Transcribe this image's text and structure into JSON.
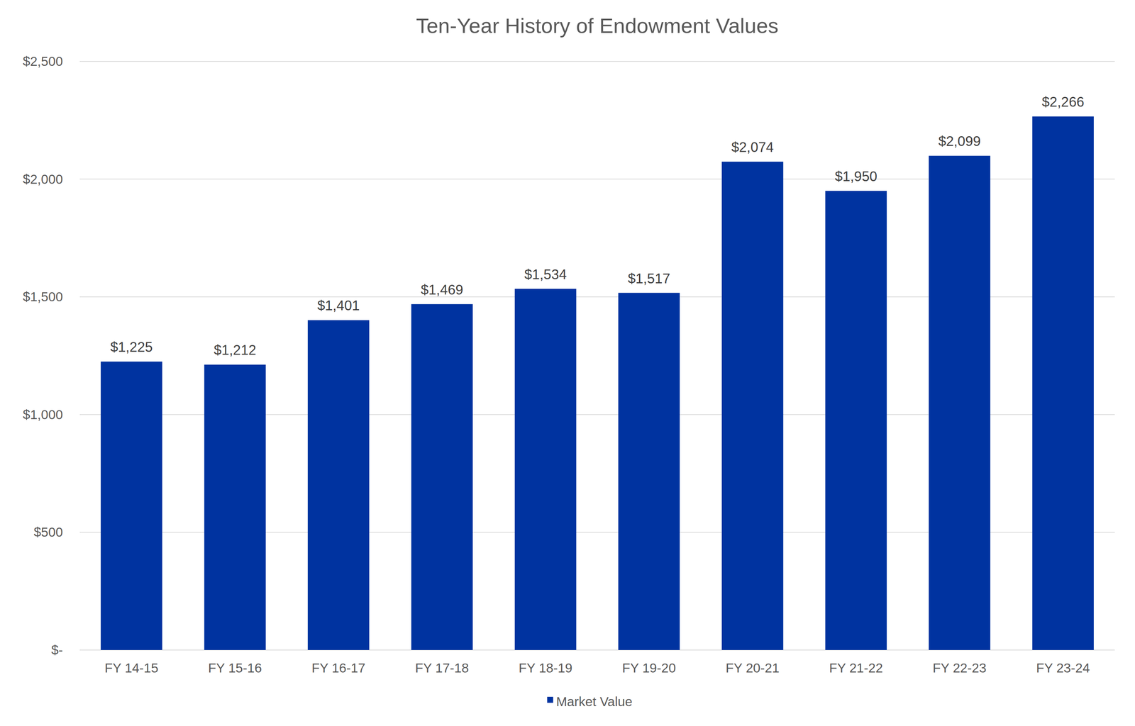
{
  "chart_data": {
    "type": "bar",
    "title": "Ten-Year History of Endowment Values",
    "categories": [
      "FY 14-15",
      "FY 15-16",
      "FY 16-17",
      "FY 17-18",
      "FY 18-19",
      "FY 19-20",
      "FY 20-21",
      "FY 21-22",
      "FY 22-23",
      "FY 23-24"
    ],
    "series": [
      {
        "name": "Market Value",
        "color": "#0033a0",
        "values": [
          1225,
          1212,
          1401,
          1469,
          1534,
          1517,
          2074,
          1950,
          2099,
          2266
        ],
        "value_labels": [
          "$1,225",
          "$1,212",
          "$1,401",
          "$1,469",
          "$1,534",
          "$1,517",
          "$2,074",
          "$1,950",
          "$2,099",
          "$2,266"
        ]
      }
    ],
    "ylim": [
      0,
      2500
    ],
    "yticks": [
      {
        "value": 0,
        "label": "$-"
      },
      {
        "value": 500,
        "label": "$500"
      },
      {
        "value": 1000,
        "label": "$1,000"
      },
      {
        "value": 1500,
        "label": "$1,500"
      },
      {
        "value": 2000,
        "label": "$2,000"
      },
      {
        "value": 2500,
        "label": "$2,500"
      }
    ],
    "grid": true,
    "data_labels": true,
    "legend": "bottom"
  }
}
